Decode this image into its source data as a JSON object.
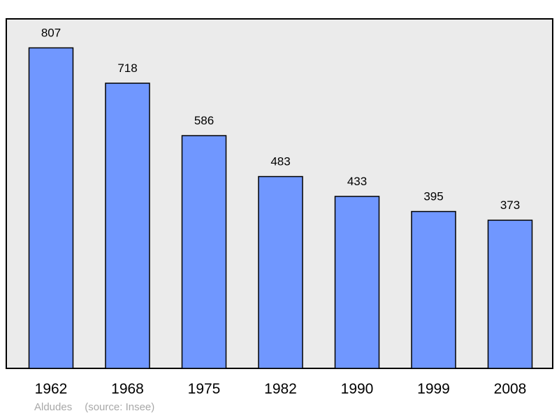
{
  "chart_data": {
    "type": "bar",
    "categories": [
      "1962",
      "1968",
      "1975",
      "1982",
      "1990",
      "1999",
      "2008"
    ],
    "values": [
      807,
      718,
      586,
      483,
      433,
      395,
      373
    ],
    "ylim": [
      0,
      880
    ],
    "grid": false,
    "colors": {
      "bar": "#7097ff",
      "plot_bg": "#ebebeb",
      "stroke": "#000000"
    }
  },
  "caption": {
    "place": "Aldudes",
    "source": "(source: Insee)"
  }
}
